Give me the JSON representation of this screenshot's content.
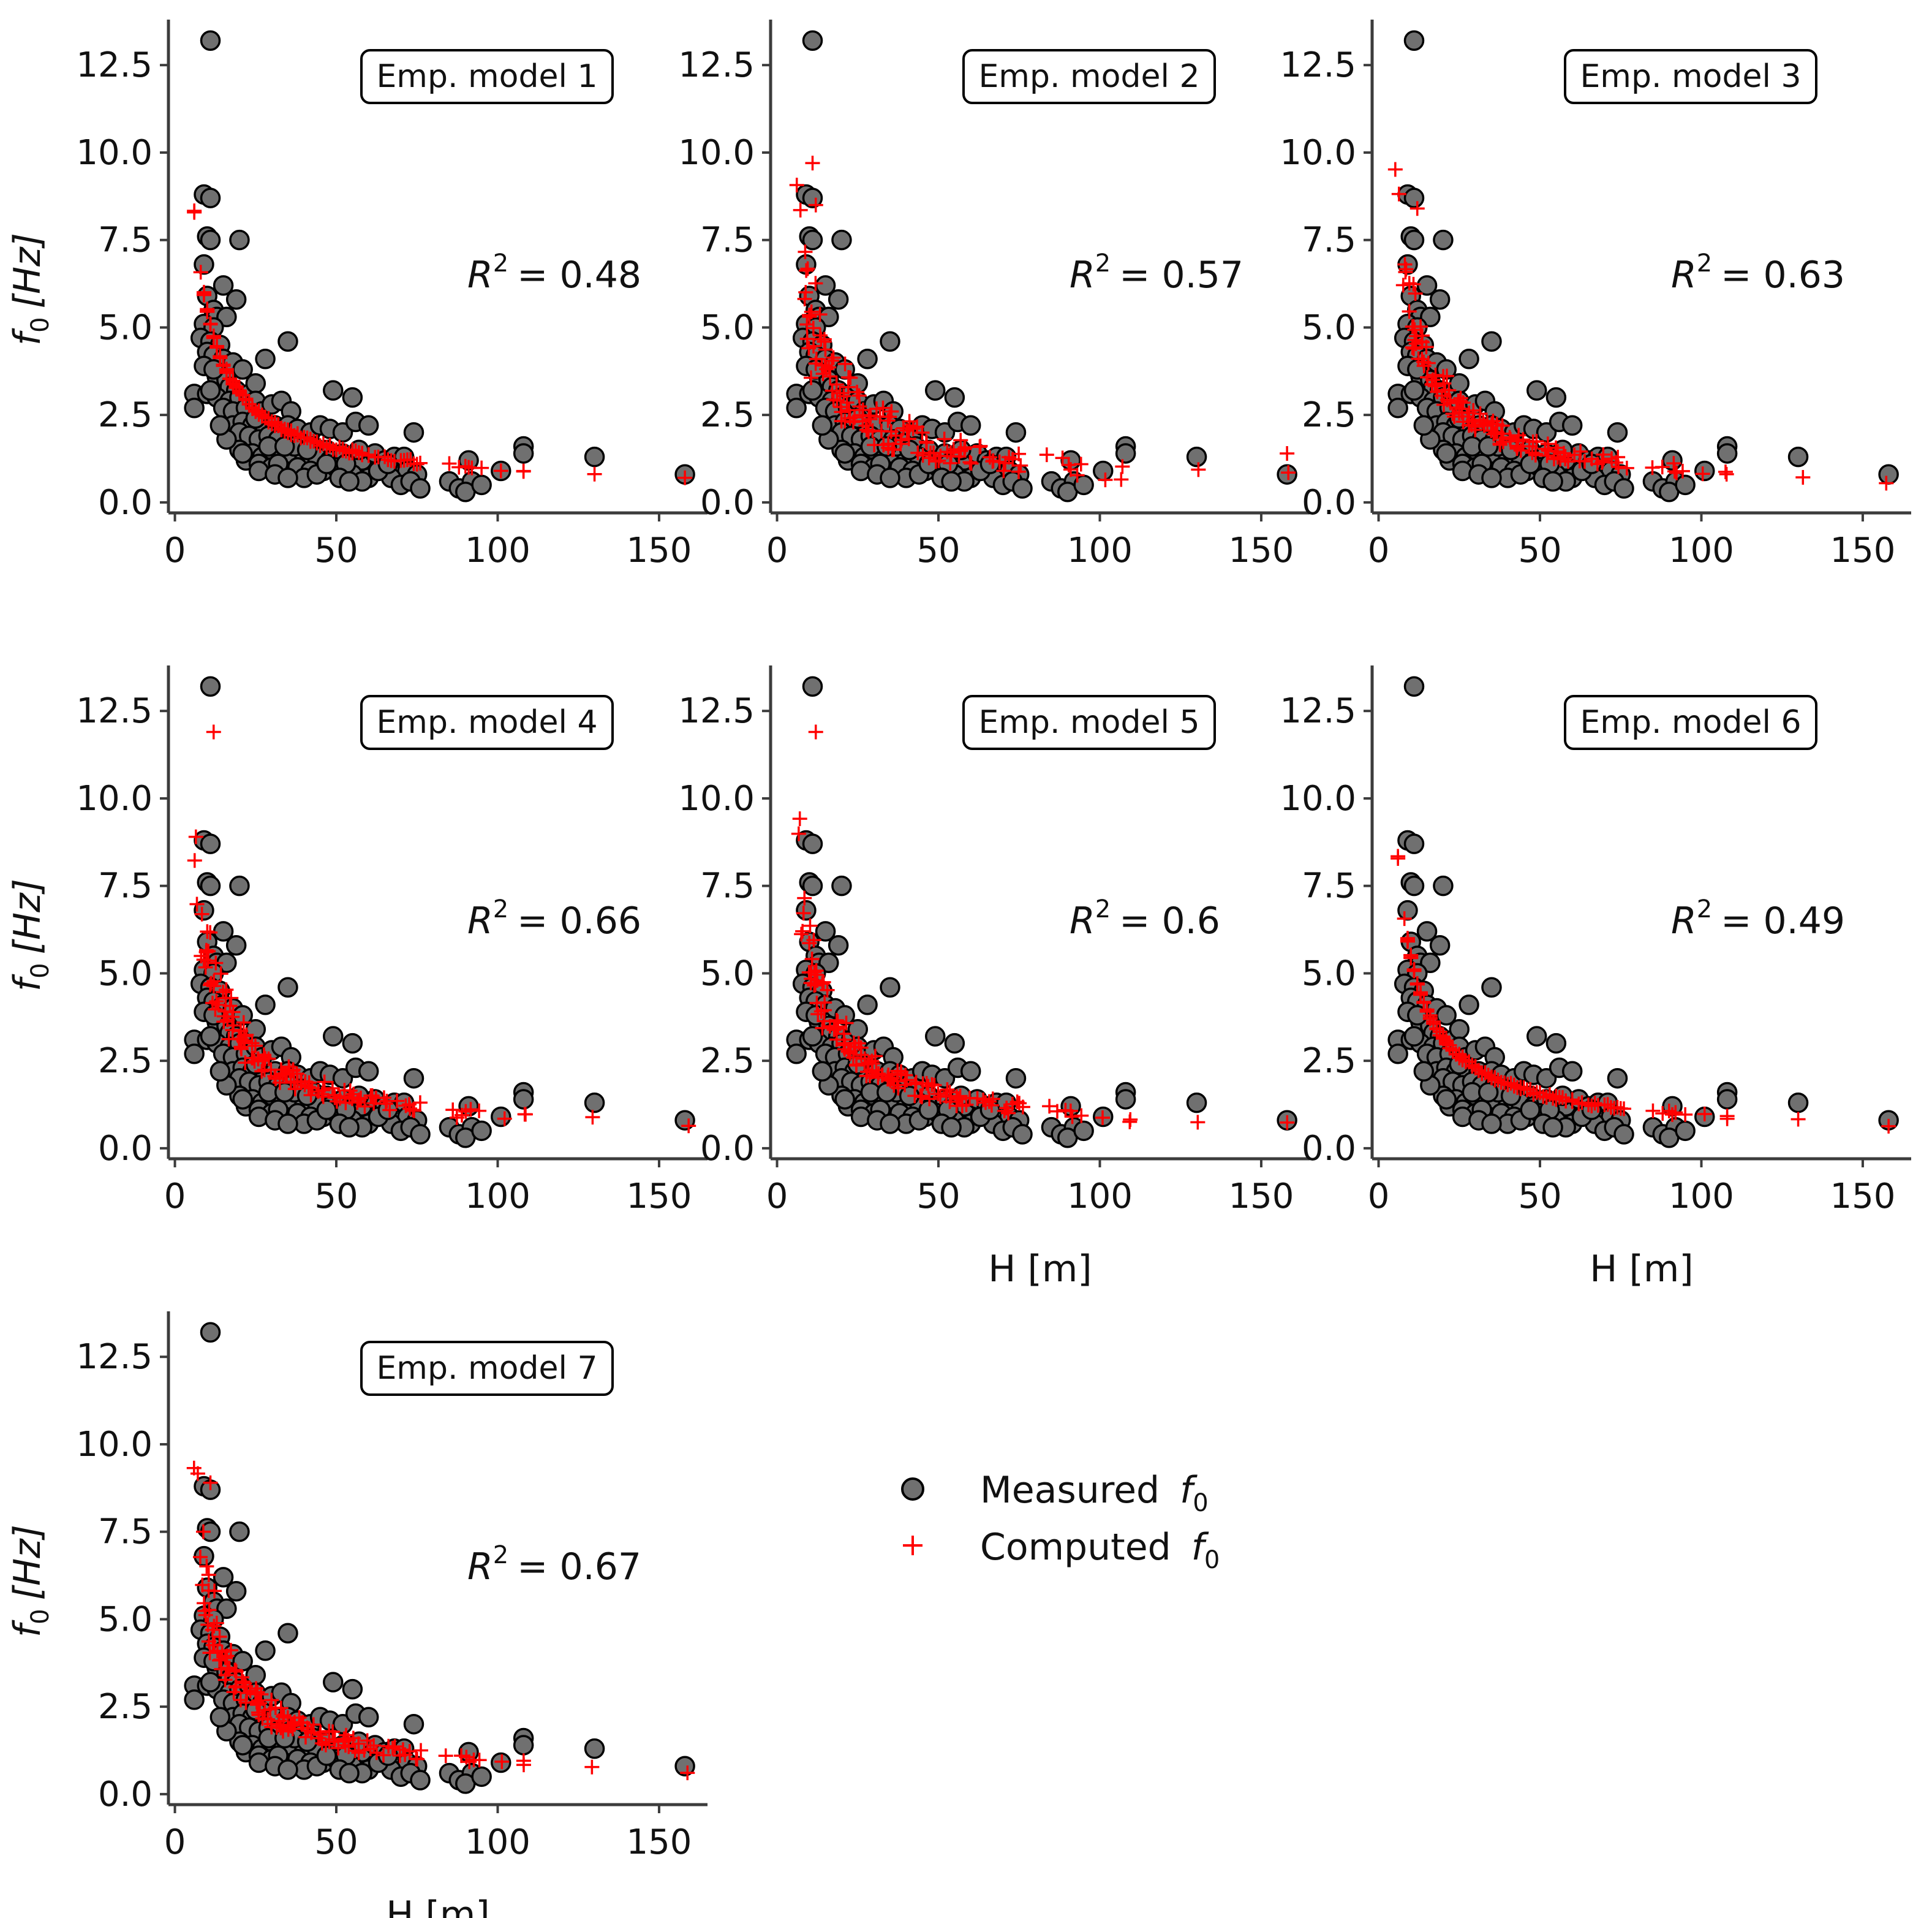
{
  "figure": {
    "legend": {
      "measured_label": "Measured",
      "computed_label": "Computed",
      "symbol": "f",
      "subscript": "0"
    },
    "colors": {
      "measured_fill": "#707070",
      "measured_edge": "#000000",
      "computed": "#ff0000",
      "axis": "#3c3c3c",
      "text": "#111111"
    }
  },
  "chart_data": [
    {
      "type": "scatter",
      "title": "Emp. model 1",
      "r2_label": "R",
      "r2_sup": "2",
      "r2_value": "= 0.48",
      "xlabel": "",
      "ylabel_symbol": "f",
      "ylabel_sub": "0",
      "ylabel_unit": "[Hz]",
      "xlim": [
        -2,
        165
      ],
      "ylim": [
        -0.3,
        13.8
      ],
      "xticks": [
        "0",
        "50",
        "100",
        "150"
      ],
      "yticks": [
        "0.0",
        "2.5",
        "5.0",
        "7.5",
        "10.0",
        "12.5"
      ],
      "series": [
        {
          "name": "Measured f0"
        },
        {
          "name": "Computed f0",
          "r2": 0.48,
          "style": "smooth"
        }
      ]
    },
    {
      "type": "scatter",
      "title": "Emp. model 2",
      "r2_label": "R",
      "r2_sup": "2",
      "r2_value": "= 0.57",
      "xlabel": "",
      "ylabel_symbol": "",
      "ylabel_sub": "",
      "ylabel_unit": "",
      "xlim": [
        -2,
        165
      ],
      "ylim": [
        -0.3,
        13.8
      ],
      "xticks": [
        "0",
        "50",
        "100",
        "150"
      ],
      "yticks": [
        "0.0",
        "2.5",
        "5.0",
        "7.5",
        "10.0",
        "12.5"
      ],
      "series": [
        {
          "name": "Measured f0"
        },
        {
          "name": "Computed f0",
          "r2": 0.57,
          "style": "scattered"
        }
      ]
    },
    {
      "type": "scatter",
      "title": "Emp. model 3",
      "r2_label": "R",
      "r2_sup": "2",
      "r2_value": "= 0.63",
      "xlabel": "",
      "ylabel_symbol": "",
      "ylabel_sub": "",
      "ylabel_unit": "",
      "xlim": [
        -2,
        165
      ],
      "ylim": [
        -0.3,
        13.8
      ],
      "xticks": [
        "0",
        "50",
        "100",
        "150"
      ],
      "yticks": [
        "0.0",
        "2.5",
        "5.0",
        "7.5",
        "10.0",
        "12.5"
      ],
      "series": [
        {
          "name": "Measured f0"
        },
        {
          "name": "Computed f0",
          "r2": 0.63,
          "style": "mixed"
        }
      ]
    },
    {
      "type": "scatter",
      "title": "Emp. model 4",
      "r2_label": "R",
      "r2_sup": "2",
      "r2_value": "= 0.66",
      "xlabel": "",
      "ylabel_symbol": "f",
      "ylabel_sub": "0",
      "ylabel_unit": "[Hz]",
      "xlim": [
        -2,
        165
      ],
      "ylim": [
        -0.3,
        13.8
      ],
      "xticks": [
        "0",
        "50",
        "100",
        "150"
      ],
      "yticks": [
        "0.0",
        "2.5",
        "5.0",
        "7.5",
        "10.0",
        "12.5"
      ],
      "series": [
        {
          "name": "Measured f0"
        },
        {
          "name": "Computed f0",
          "r2": 0.66,
          "style": "mixed"
        }
      ]
    },
    {
      "type": "scatter",
      "title": "Emp. model 5",
      "r2_label": "R",
      "r2_sup": "2",
      "r2_value": "= 0.6",
      "xlabel": "H [m]",
      "ylabel_symbol": "",
      "ylabel_sub": "",
      "ylabel_unit": "",
      "xlim": [
        -2,
        165
      ],
      "ylim": [
        -0.3,
        13.8
      ],
      "xticks": [
        "0",
        "50",
        "100",
        "150"
      ],
      "yticks": [
        "0.0",
        "2.5",
        "5.0",
        "7.5",
        "10.0",
        "12.5"
      ],
      "series": [
        {
          "name": "Measured f0"
        },
        {
          "name": "Computed f0",
          "r2": 0.6,
          "style": "mixed"
        }
      ]
    },
    {
      "type": "scatter",
      "title": "Emp. model 6",
      "r2_label": "R",
      "r2_sup": "2",
      "r2_value": "= 0.49",
      "xlabel": "H [m]",
      "ylabel_symbol": "",
      "ylabel_sub": "",
      "ylabel_unit": "",
      "xlim": [
        -2,
        165
      ],
      "ylim": [
        -0.3,
        13.8
      ],
      "xticks": [
        "0",
        "50",
        "100",
        "150"
      ],
      "yticks": [
        "0.0",
        "2.5",
        "5.0",
        "7.5",
        "10.0",
        "12.5"
      ],
      "series": [
        {
          "name": "Measured f0"
        },
        {
          "name": "Computed f0",
          "r2": 0.49,
          "style": "smooth"
        }
      ]
    },
    {
      "type": "scatter",
      "title": "Emp. model 7",
      "r2_label": "R",
      "r2_sup": "2",
      "r2_value": "= 0.67",
      "xlabel": "H [m]",
      "ylabel_symbol": "f",
      "ylabel_sub": "0",
      "ylabel_unit": "[Hz]",
      "xlim": [
        -2,
        165
      ],
      "ylim": [
        -0.3,
        13.8
      ],
      "xticks": [
        "0",
        "50",
        "100",
        "150"
      ],
      "yticks": [
        "0.0",
        "2.5",
        "5.0",
        "7.5",
        "10.0",
        "12.5"
      ],
      "series": [
        {
          "name": "Measured f0"
        },
        {
          "name": "Computed f0",
          "r2": 0.67,
          "style": "mixed"
        }
      ]
    }
  ]
}
